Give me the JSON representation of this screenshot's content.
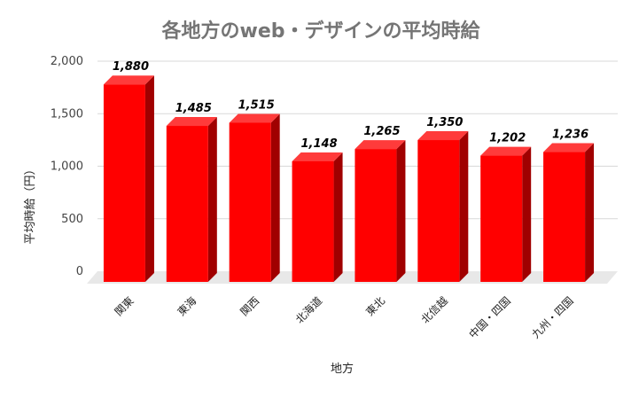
{
  "chart_data": {
    "type": "bar",
    "title": "各地方のweb・デザインの平均時給",
    "xlabel": "地方",
    "ylabel": "平均時給（円）",
    "categories": [
      "関東",
      "東海",
      "関西",
      "北海道",
      "東北",
      "北信越",
      "中国・四国",
      "九州・四国"
    ],
    "values": [
      1880,
      1485,
      1515,
      1148,
      1265,
      1350,
      1202,
      1236
    ],
    "data_labels": [
      "1,880",
      "1,485",
      "1,515",
      "1,148",
      "1,265",
      "1,350",
      "1,202",
      "1,236"
    ],
    "ylim": [
      0,
      2000
    ],
    "yticks": [
      0,
      500,
      1000,
      1500,
      2000
    ],
    "ytick_labels": [
      "0",
      "500",
      "1,000",
      "1,500",
      "2,000"
    ],
    "grid": true,
    "legend": "none",
    "style": "3d",
    "colors": {
      "bar_front": "#ff0000",
      "bar_side": "#a00000",
      "bar_top": "#ff3b3b",
      "floor": "#e8e8e8",
      "gridline": "#d9d9d9",
      "title": "#757575"
    }
  }
}
